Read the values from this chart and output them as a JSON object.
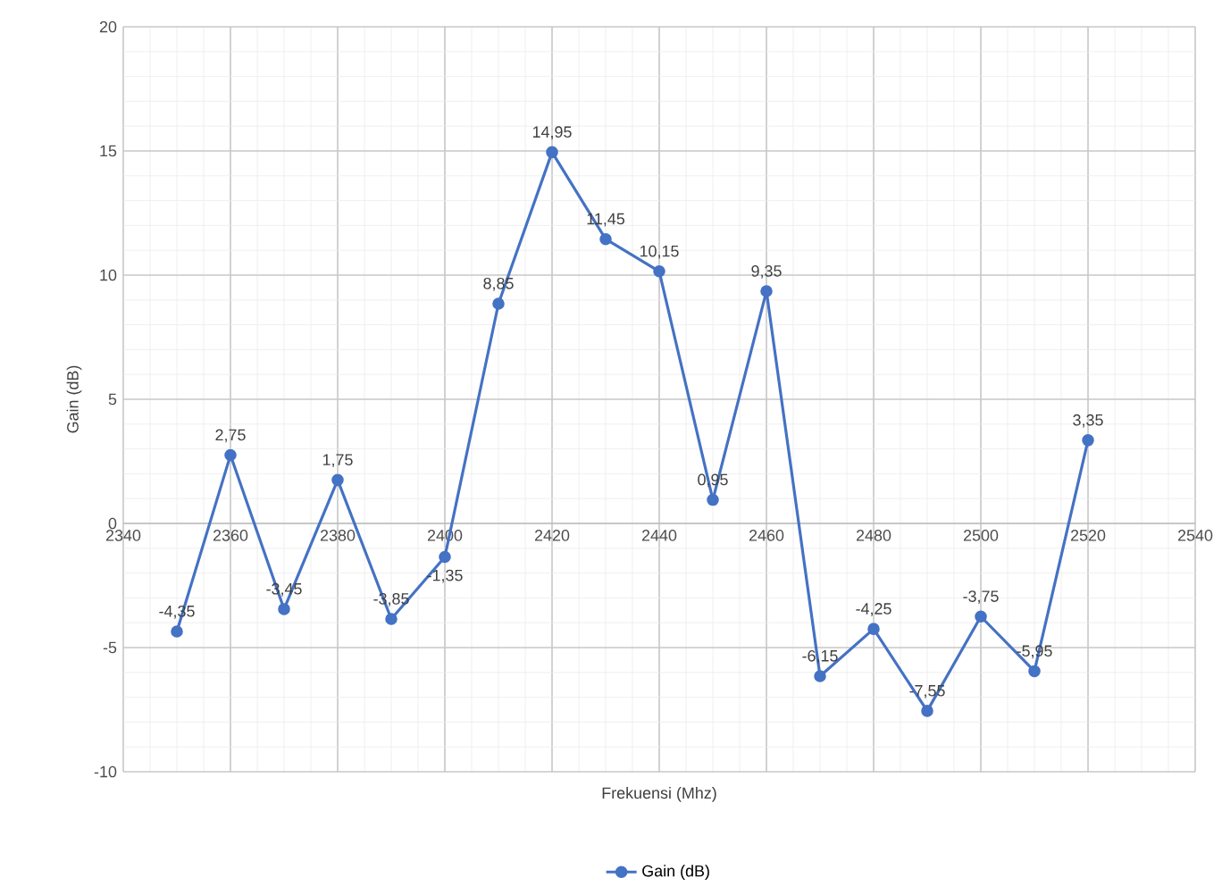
{
  "chart_data": {
    "type": "line",
    "x": [
      2350,
      2360,
      2370,
      2380,
      2390,
      2400,
      2410,
      2420,
      2430,
      2440,
      2450,
      2460,
      2470,
      2480,
      2490,
      2500,
      2510,
      2520
    ],
    "series": [
      {
        "name": "Gain (dB)",
        "color": "#4472c4",
        "values": [
          -4.35,
          2.75,
          -3.45,
          1.75,
          -3.85,
          -1.35,
          8.85,
          14.95,
          11.45,
          10.15,
          0.95,
          9.35,
          -6.15,
          -4.25,
          -7.55,
          -3.75,
          -5.95,
          3.35
        ],
        "value_labels": [
          "-4,35",
          "2,75",
          "-3,45",
          "1,75",
          "-3,85",
          "-1,35",
          "8,85",
          "14,95",
          "11,45",
          "10,15",
          "0,95",
          "9,35",
          "-6,15",
          "-4,25",
          "-7,55",
          "-3,75",
          "-5,95",
          "3,35"
        ]
      }
    ],
    "xlabel": "Frekuensi (Mhz)",
    "ylabel": "Gain (dB)",
    "xlim": [
      2340,
      2540
    ],
    "xticks": [
      2340,
      2360,
      2380,
      2400,
      2420,
      2440,
      2460,
      2480,
      2500,
      2520,
      2540
    ],
    "ylim": [
      -10,
      20
    ],
    "yticks": [
      -10,
      -5,
      0,
      5,
      10,
      15,
      20
    ],
    "grid": true,
    "legend": "bottom",
    "marker": "circle",
    "line_style": "solid"
  }
}
